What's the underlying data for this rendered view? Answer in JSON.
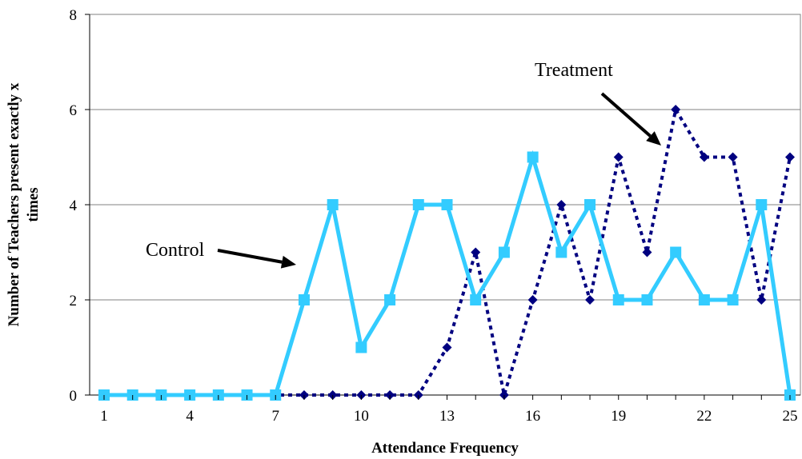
{
  "chart_data": {
    "type": "line",
    "xlabel": "Attendance Frequency",
    "ylabel_line1": "Number of Teachers present exactly x",
    "ylabel_line2": "times",
    "ylim": [
      0,
      8
    ],
    "yticks": [
      0,
      2,
      4,
      6,
      8
    ],
    "x": [
      1,
      2,
      3,
      4,
      5,
      6,
      7,
      8,
      9,
      10,
      11,
      12,
      13,
      14,
      15,
      16,
      17,
      18,
      19,
      20,
      21,
      22,
      23,
      24,
      25
    ],
    "xtick_labels": [
      "1",
      "4",
      "7",
      "10",
      "13",
      "16",
      "19",
      "22",
      "25"
    ],
    "xtick_values": [
      1,
      4,
      7,
      10,
      13,
      16,
      19,
      22,
      25
    ],
    "grid": "horizontal",
    "series": [
      {
        "name": "Control",
        "color": "#33ccff",
        "style": "solid",
        "marker": "square",
        "values": [
          0,
          0,
          0,
          0,
          0,
          0,
          0,
          2,
          4,
          1,
          2,
          4,
          4,
          2,
          3,
          5,
          3,
          4,
          2,
          2,
          3,
          2,
          2,
          4,
          0
        ]
      },
      {
        "name": "Treatment",
        "color": "#000080",
        "style": "dashed",
        "marker": "diamond",
        "values": [
          0,
          0,
          0,
          0,
          0,
          0,
          0,
          0,
          0,
          0,
          0,
          0,
          1,
          3,
          0,
          2,
          4,
          2,
          5,
          3,
          6,
          5,
          5,
          2,
          5
        ]
      }
    ],
    "annotations": [
      {
        "text": "Control",
        "series": "Control"
      },
      {
        "text": "Treatment",
        "series": "Treatment"
      }
    ]
  }
}
